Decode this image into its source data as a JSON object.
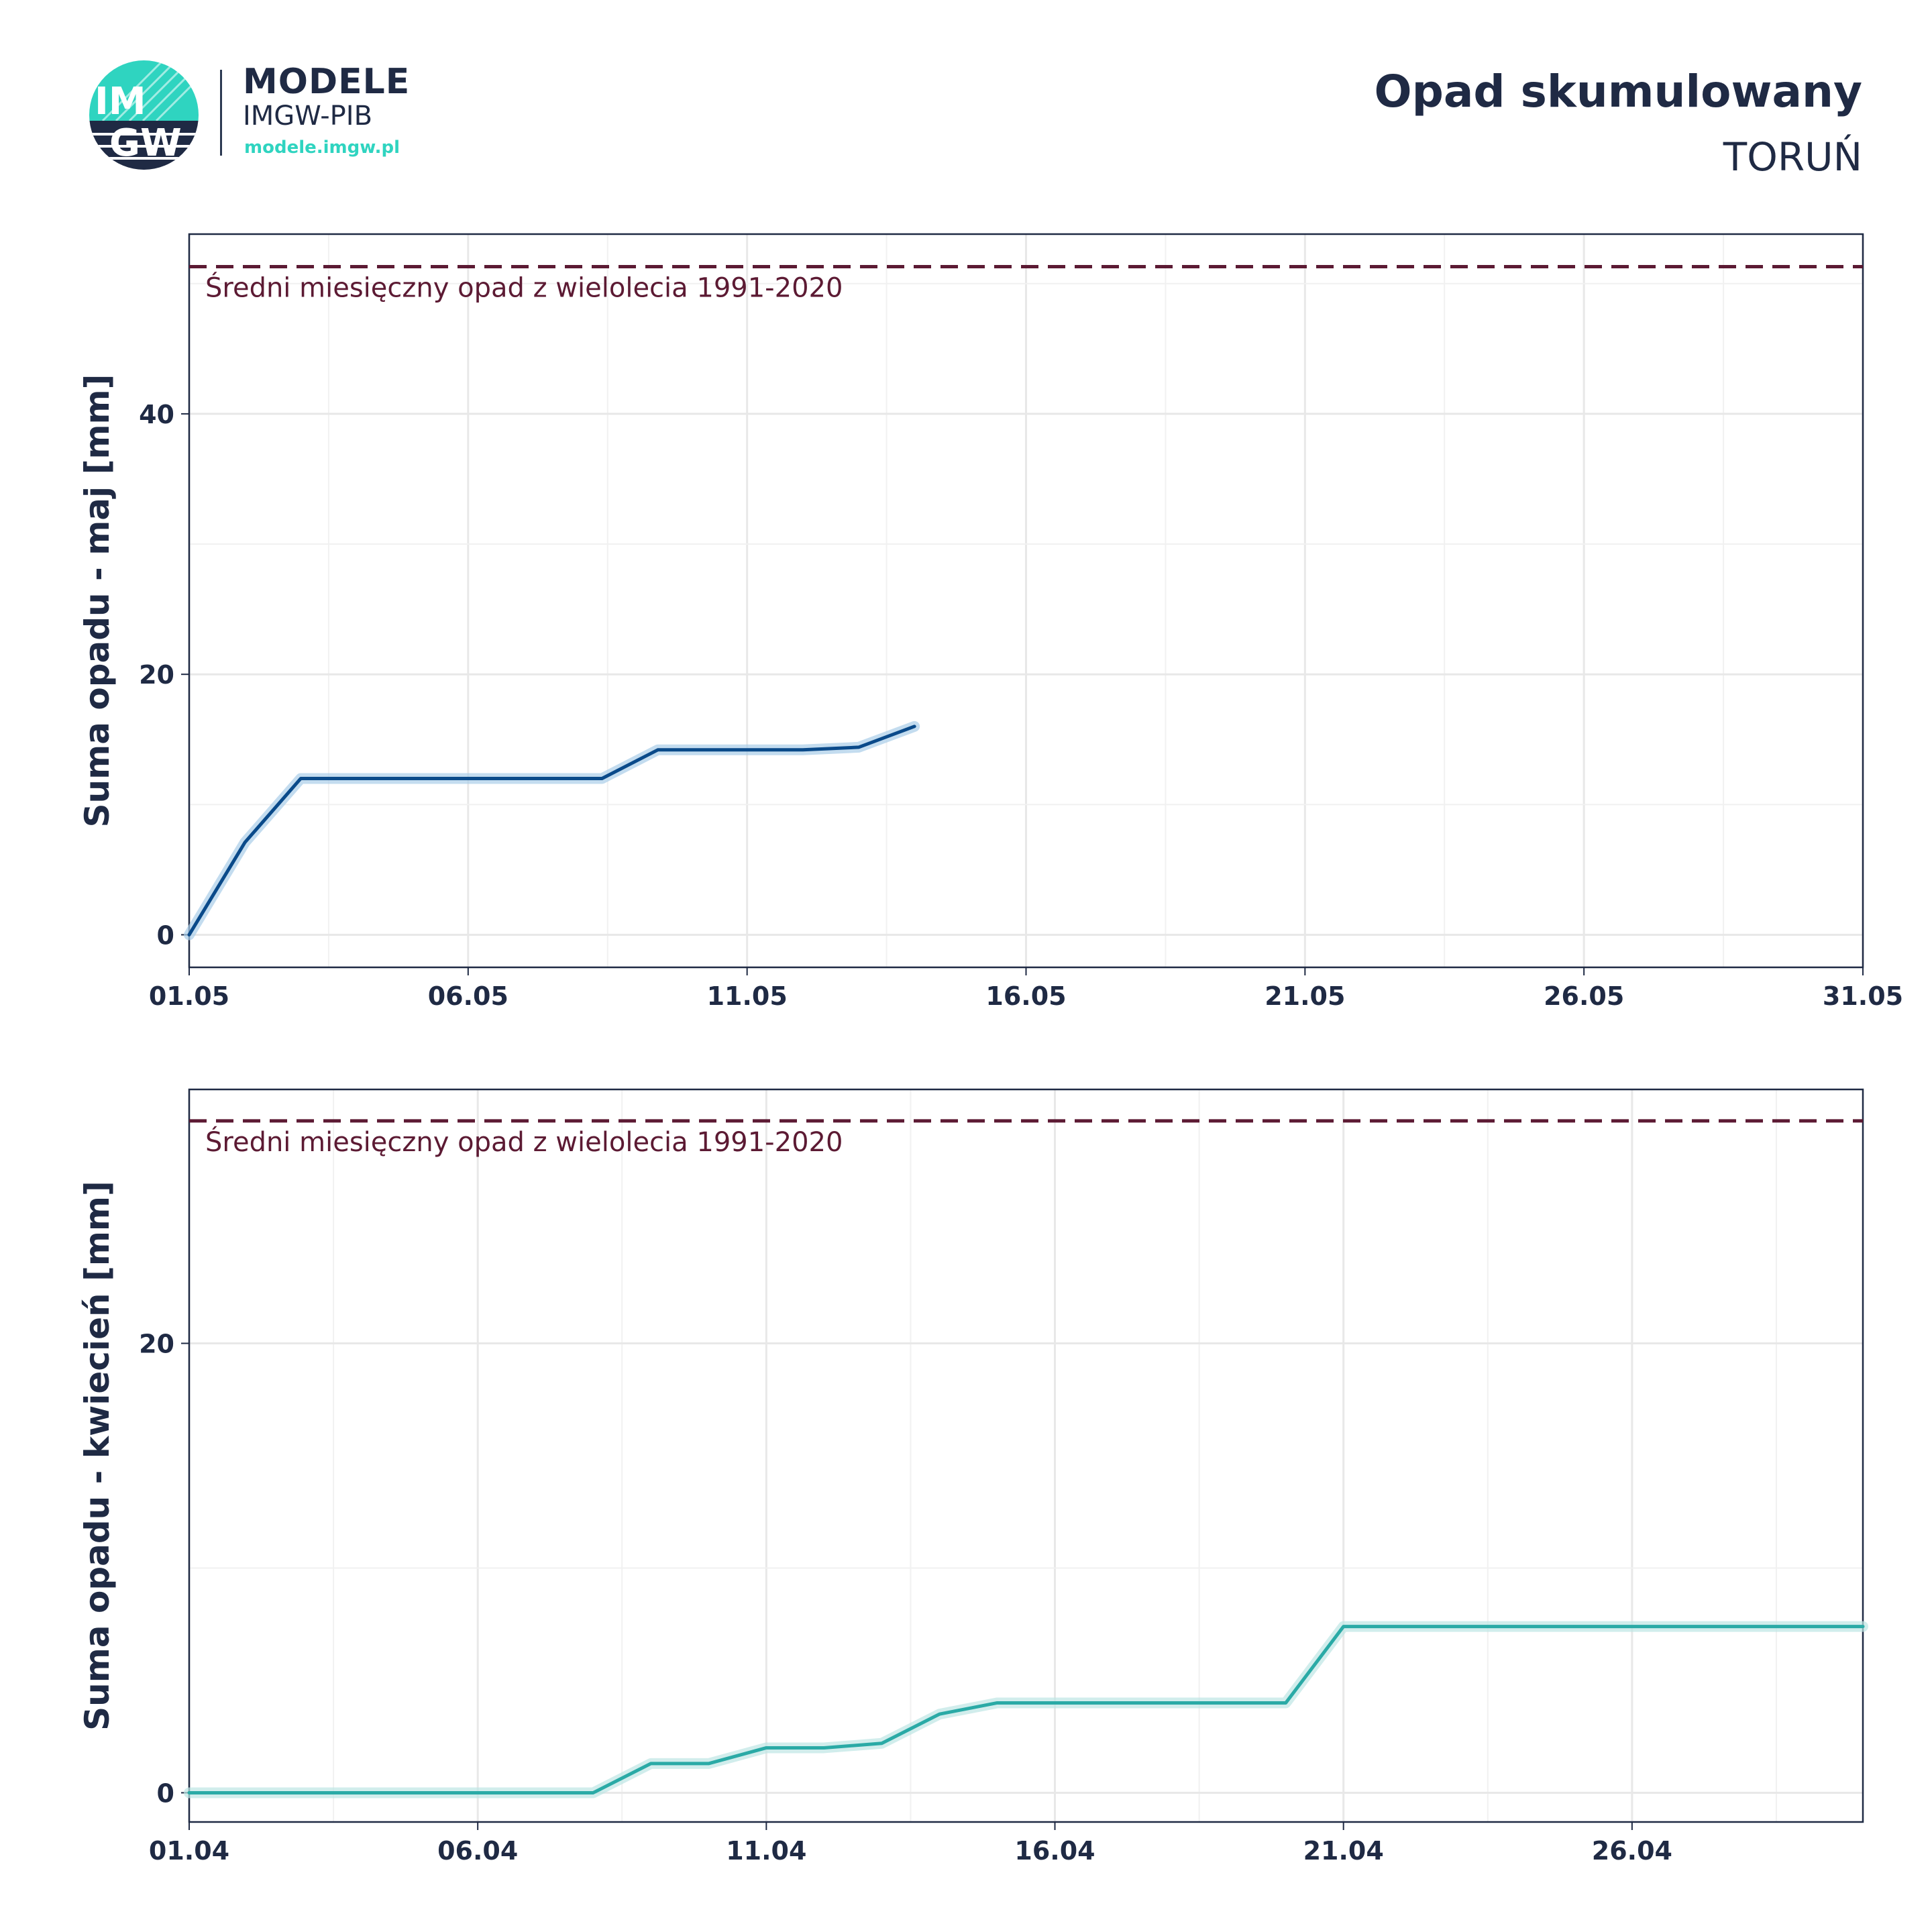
{
  "header": {
    "brand_name": "MODELE",
    "brand_sub": "IMGW-PIB",
    "brand_url": "modele.imgw.pl",
    "logo_text_top": "IM",
    "logo_text_bottom": "GW",
    "title": "Opad skumulowany",
    "subtitle": "TORUŃ"
  },
  "colors": {
    "text": "#1f2a44",
    "reference_line": "#5c1a33",
    "may_series": "#0a4a8a",
    "april_series": "#2aaaa6",
    "logo_teal": "#2fd4c0",
    "grid": "#e8e8e8"
  },
  "chart_data": [
    {
      "type": "line",
      "ylabel": "Suma opadu - maj  [mm]",
      "x_ticks": [
        "01.05",
        "06.05",
        "11.05",
        "16.05",
        "21.05",
        "26.05",
        "31.05"
      ],
      "x_range": [
        1,
        31
      ],
      "y_range": [
        -2.5,
        53.8
      ],
      "y_ticks": [
        0,
        20,
        40
      ],
      "y_minor_ticks": [
        10,
        30,
        50
      ],
      "reference": {
        "value": 51.3,
        "label": "Średni miesięczny opad z wielolecia 1991-2020"
      },
      "series": [
        {
          "x": [
            1,
            2,
            3,
            4,
            5,
            6,
            7,
            8,
            8.4,
            9.4,
            10,
            11,
            12,
            13,
            14
          ],
          "y": [
            0,
            7.1,
            12.0,
            12.0,
            12.0,
            12.0,
            12.0,
            12.0,
            12.0,
            14.2,
            14.2,
            14.2,
            14.2,
            14.4,
            16.0
          ]
        }
      ]
    },
    {
      "type": "line",
      "ylabel": "Suma opadu - kwiecień  [mm]",
      "x_ticks": [
        "01.04",
        "06.04",
        "11.04",
        "16.04",
        "21.04",
        "26.04"
      ],
      "x_range": [
        1,
        30
      ],
      "y_range": [
        -1.3,
        31.3
      ],
      "y_ticks": [
        0,
        20
      ],
      "y_minor_ticks": [
        10
      ],
      "reference": {
        "value": 29.9,
        "label": "Średni miesięczny opad z wielolecia 1991-2020"
      },
      "series": [
        {
          "x": [
            1,
            2,
            3,
            4,
            5,
            6,
            7,
            8,
            9,
            10,
            11,
            12,
            13,
            14,
            15,
            16,
            17,
            18,
            19,
            20,
            21,
            22,
            23,
            24,
            25,
            26,
            27,
            28,
            29,
            30
          ],
          "y": [
            0,
            0,
            0,
            0,
            0,
            0,
            0,
            0,
            1.3,
            1.3,
            2.0,
            2.0,
            2.2,
            3.5,
            4.0,
            4.0,
            4.0,
            4.0,
            4.0,
            4.0,
            7.4,
            7.4,
            7.4,
            7.4,
            7.4,
            7.4,
            7.4,
            7.4,
            7.4,
            7.4
          ]
        }
      ]
    }
  ]
}
